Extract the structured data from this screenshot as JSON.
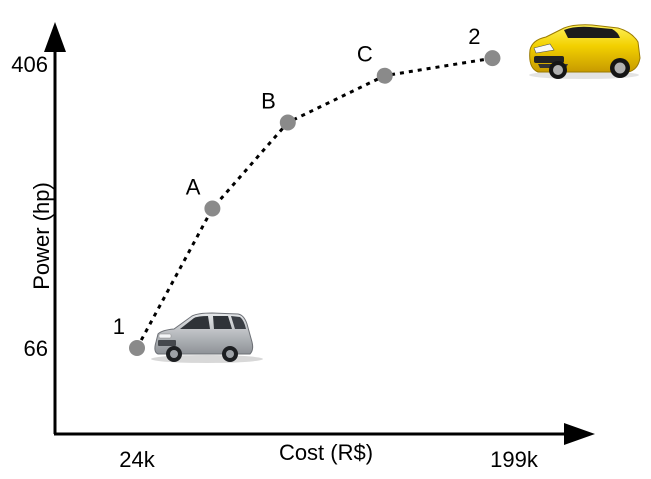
{
  "chart_data": {
    "type": "line",
    "xlabel": "Cost (R$)",
    "ylabel": "Power (hp)",
    "x_ticks": [
      {
        "value": 24,
        "label": "24k"
      },
      {
        "value": 199,
        "label": "199k"
      }
    ],
    "y_ticks": [
      {
        "value": 66,
        "label": "66"
      },
      {
        "value": 406,
        "label": "406"
      }
    ],
    "series": [
      {
        "points": [
          {
            "label": "1",
            "x": 24,
            "y": 66
          },
          {
            "label": "A",
            "x": 59,
            "y": 233
          },
          {
            "label": "B",
            "x": 94,
            "y": 336
          },
          {
            "label": "C",
            "x": 139,
            "y": 392
          },
          {
            "label": "2",
            "x": 189,
            "y": 413
          }
        ]
      }
    ],
    "line_style": "dotted",
    "marker_color": "#8a8a8a",
    "grid": false,
    "illustrations": [
      {
        "icon": "silver-hatchback-car-icon",
        "near_point": "1"
      },
      {
        "icon": "yellow-sports-car-icon",
        "near_point": "2"
      }
    ]
  }
}
